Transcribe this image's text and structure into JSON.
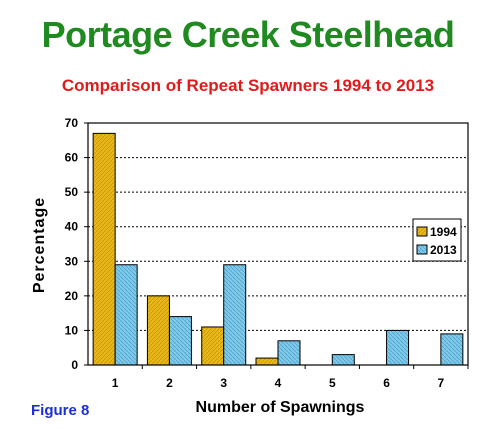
{
  "page": {
    "title": "Portage Creek Steelhead",
    "subtitle": "Comparison of Repeat Spawners 1994 to 2013",
    "figure_label": "Figure 8"
  },
  "colors": {
    "title": "#1f8a1f",
    "subtitle": "#e11b1b",
    "figure_label": "#1b2fd6",
    "series_1994": "#e8b81a",
    "series_2013": "#7ec8e8"
  },
  "chart_data": {
    "type": "bar",
    "title": "",
    "xlabel": "Number of Spawnings",
    "ylabel": "Percentage",
    "categories": [
      "1",
      "2",
      "3",
      "4",
      "5",
      "6",
      "7"
    ],
    "series": [
      {
        "name": "1994",
        "values": [
          67,
          20,
          11,
          2,
          0,
          0,
          0
        ],
        "color": "#e8b81a"
      },
      {
        "name": "2013",
        "values": [
          29,
          14,
          29,
          7,
          3,
          10,
          9
        ],
        "color": "#7ec8e8"
      }
    ],
    "ylim": [
      0,
      70
    ],
    "yticks": [
      0,
      10,
      20,
      30,
      40,
      50,
      60,
      70
    ],
    "grid": "horizontal dotted",
    "legend_position": "right"
  }
}
